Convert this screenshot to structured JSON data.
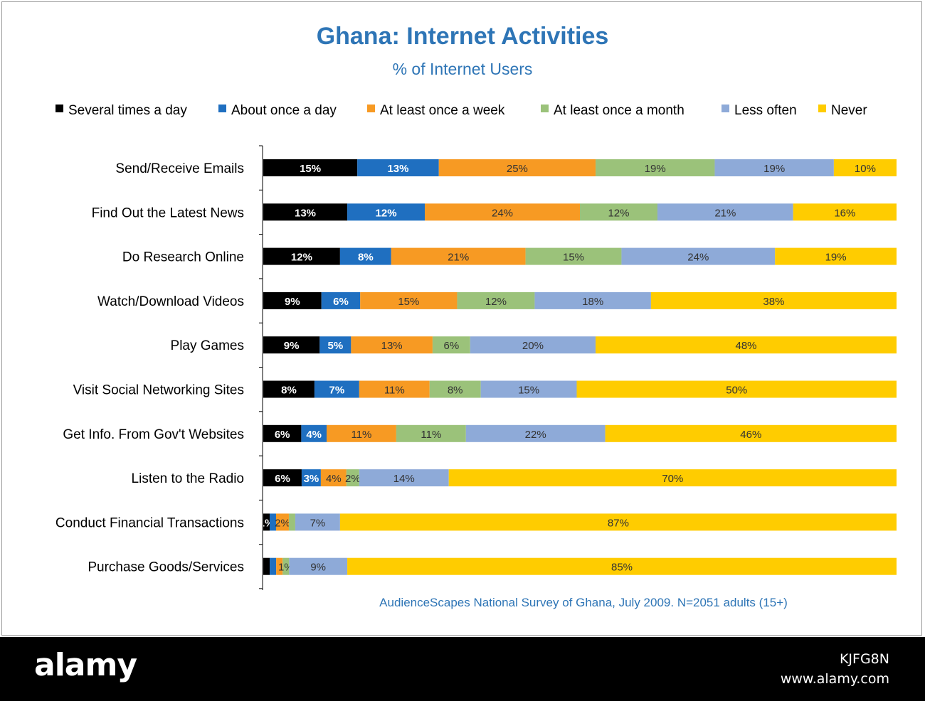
{
  "chart_data": {
    "type": "bar",
    "orientation": "horizontal",
    "stacked": true,
    "title": "Ghana: Internet Activities",
    "subtitle": "% of Internet Users",
    "source": "AudienceScapes National Survey of Ghana, July 2009. N=2051 adults (15+)",
    "legend_position": "top",
    "grid": false,
    "categories": [
      "Send/Receive Emails",
      "Find Out the Latest News",
      "Do Research Online",
      "Watch/Download Videos",
      "Play Games",
      "Visit Social Networking Sites",
      "Get Info. From Gov't Websites",
      "Listen to the Radio",
      "Conduct Financial Transactions",
      "Purchase Goods/Services"
    ],
    "series": [
      {
        "name": "Several times a day",
        "color": "#000000",
        "values": [
          15,
          13,
          12,
          9,
          9,
          8,
          6,
          6,
          1,
          1
        ]
      },
      {
        "name": "About once a day",
        "color": "#1f6fc0",
        "values": [
          13,
          12,
          8,
          6,
          5,
          7,
          4,
          3,
          1,
          1
        ]
      },
      {
        "name": "At least once a week",
        "color": "#f79a23",
        "values": [
          25,
          24,
          21,
          15,
          13,
          11,
          11,
          4,
          2,
          1
        ]
      },
      {
        "name": "At least once a month",
        "color": "#9bc27a",
        "values": [
          19,
          12,
          15,
          12,
          6,
          8,
          11,
          2,
          1,
          1
        ]
      },
      {
        "name": "Less often",
        "color": "#8eaad8",
        "values": [
          19,
          21,
          24,
          18,
          20,
          15,
          22,
          14,
          7,
          9
        ]
      },
      {
        "name": "Never",
        "color": "#ffcc00",
        "values": [
          10,
          16,
          19,
          38,
          48,
          50,
          46,
          70,
          87,
          85
        ]
      }
    ],
    "data_labels": [
      [
        "15%",
        "13%",
        "25%",
        "19%",
        "19%",
        "10%"
      ],
      [
        "13%",
        "12%",
        "24%",
        "12%",
        "21%",
        "16%"
      ],
      [
        "12%",
        "8%",
        "21%",
        "15%",
        "24%",
        "19%"
      ],
      [
        "9%",
        "6%",
        "15%",
        "12%",
        "18%",
        "38%"
      ],
      [
        "9%",
        "5%",
        "13%",
        "6%",
        "20%",
        "48%"
      ],
      [
        "8%",
        "7%",
        "11%",
        "8%",
        "15%",
        "50%"
      ],
      [
        "6%",
        "4%",
        "11%",
        "11%",
        "22%",
        "46%"
      ],
      [
        "6%",
        "3%",
        "4%",
        "2%",
        "14%",
        "70%"
      ],
      [
        "1%",
        "",
        "2%",
        "",
        "7%",
        "87%"
      ],
      [
        "",
        "",
        "",
        "1%",
        "9%",
        "85%"
      ]
    ]
  },
  "watermark": {
    "logo": "alamy",
    "image_id": "KJFG8N",
    "url": "www.alamy.com"
  }
}
